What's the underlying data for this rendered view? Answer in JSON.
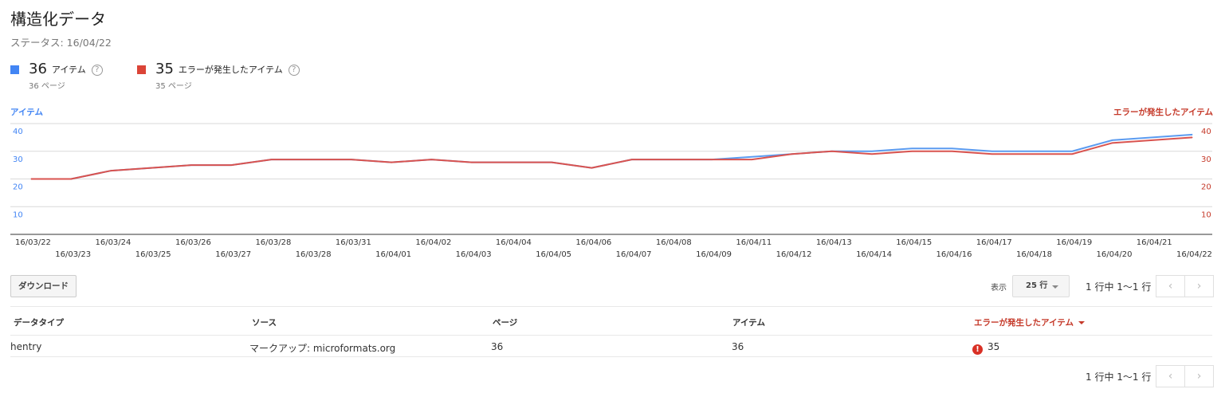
{
  "page": {
    "title": "構造化データ",
    "status": "ステータス: 16/04/22"
  },
  "metrics": [
    {
      "value": "36",
      "label": "アイテム",
      "sub": "36 ページ",
      "color": "#4285f4"
    },
    {
      "value": "35",
      "label": "エラーが発生したアイテム",
      "sub": "35 ページ",
      "color": "#db4437"
    }
  ],
  "help_glyph": "?",
  "chart_data": {
    "type": "line",
    "left_axis_label": "アイテム",
    "right_axis_label": "エラーが発生したアイテム",
    "ylim": [
      0,
      40
    ],
    "yticks": [
      10,
      20,
      30,
      40
    ],
    "x": [
      "16/03/22",
      "16/03/23",
      "16/03/24",
      "16/03/25",
      "16/03/26",
      "16/03/27",
      "16/03/28",
      "16/03/28",
      "16/03/31",
      "16/04/01",
      "16/04/02",
      "16/04/03",
      "16/04/04",
      "16/04/05",
      "16/04/06",
      "16/04/07",
      "16/04/08",
      "16/04/09",
      "16/04/11",
      "16/04/12",
      "16/04/13",
      "16/04/14",
      "16/04/15",
      "16/04/16",
      "16/04/17",
      "16/04/18",
      "16/04/19",
      "16/04/20",
      "16/04/21",
      "16/04/22"
    ],
    "series": [
      {
        "name": "アイテム",
        "color": "#5b9bf0",
        "values": [
          20,
          20,
          23,
          24,
          25,
          25,
          27,
          27,
          27,
          26,
          27,
          26,
          26,
          26,
          24,
          27,
          27,
          27,
          28,
          29,
          30,
          30,
          31,
          31,
          30,
          30,
          30,
          34,
          35,
          36
        ]
      },
      {
        "name": "エラーが発生したアイテム",
        "color": "#d9534f",
        "values": [
          20,
          20,
          23,
          24,
          25,
          25,
          27,
          27,
          27,
          26,
          27,
          26,
          26,
          26,
          24,
          27,
          27,
          27,
          27,
          29,
          30,
          29,
          30,
          30,
          29,
          29,
          29,
          33,
          34,
          35
        ]
      }
    ],
    "grid": true
  },
  "toolbar": {
    "download_label": "ダウンロード",
    "show_label": "表示",
    "rows_per_page": "25 行",
    "pager_text": "1 行中 1〜1 行",
    "prev_glyph": "‹",
    "next_glyph": "›"
  },
  "table": {
    "columns": [
      "データタイプ",
      "ソース",
      "ページ",
      "アイテム",
      "エラーが発生したアイテム"
    ],
    "rows": [
      {
        "type": "hentry",
        "source": "マークアップ: microformats.org",
        "pages": "36",
        "items": "36",
        "errors": "35"
      }
    ],
    "error_glyph": "!"
  }
}
